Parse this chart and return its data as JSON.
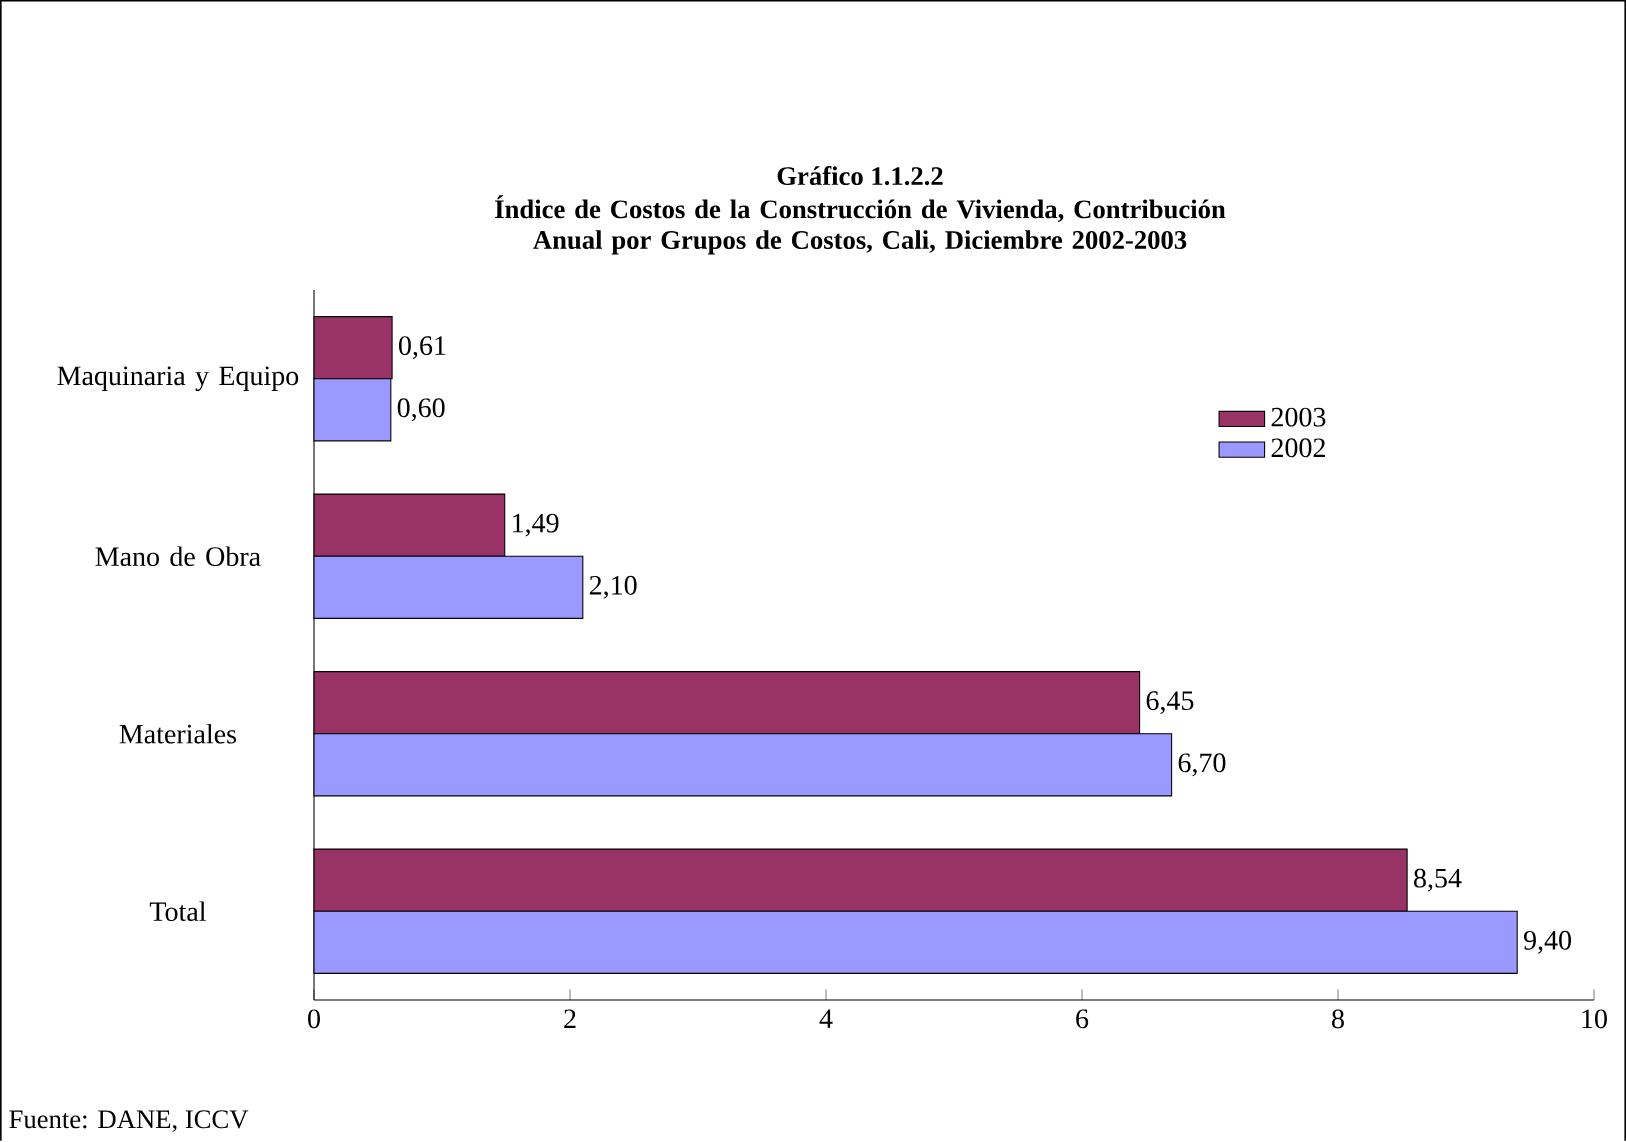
{
  "chart_data": {
    "type": "bar",
    "orientation": "horizontal",
    "title": "Gráfico 1.1.2.2",
    "subtitle": "Índice de Costos de la Construcción de Vivienda, Contribución Anual por Grupos de Costos, Cali, Diciembre 2002-2003",
    "categories": [
      "Maquinaria y Equipo",
      "Mano de Obra",
      "Materiales",
      "Total"
    ],
    "series": [
      {
        "name": "2003",
        "color": "#993366",
        "values": [
          0.61,
          1.49,
          6.45,
          8.54
        ],
        "value_labels": [
          "0,61",
          "1,49",
          "6,45",
          "8,54"
        ]
      },
      {
        "name": "2002",
        "color": "#9999ff",
        "values": [
          0.6,
          2.1,
          6.7,
          9.4
        ],
        "value_labels": [
          "0,60",
          "2,10",
          "6,70",
          "9,40"
        ]
      }
    ],
    "xlim": [
      0,
      10
    ],
    "xticks": [
      0,
      2,
      4,
      6,
      8,
      10
    ],
    "legend": "top right",
    "annotations": [
      "Fuente: DANE, ICCV"
    ]
  }
}
